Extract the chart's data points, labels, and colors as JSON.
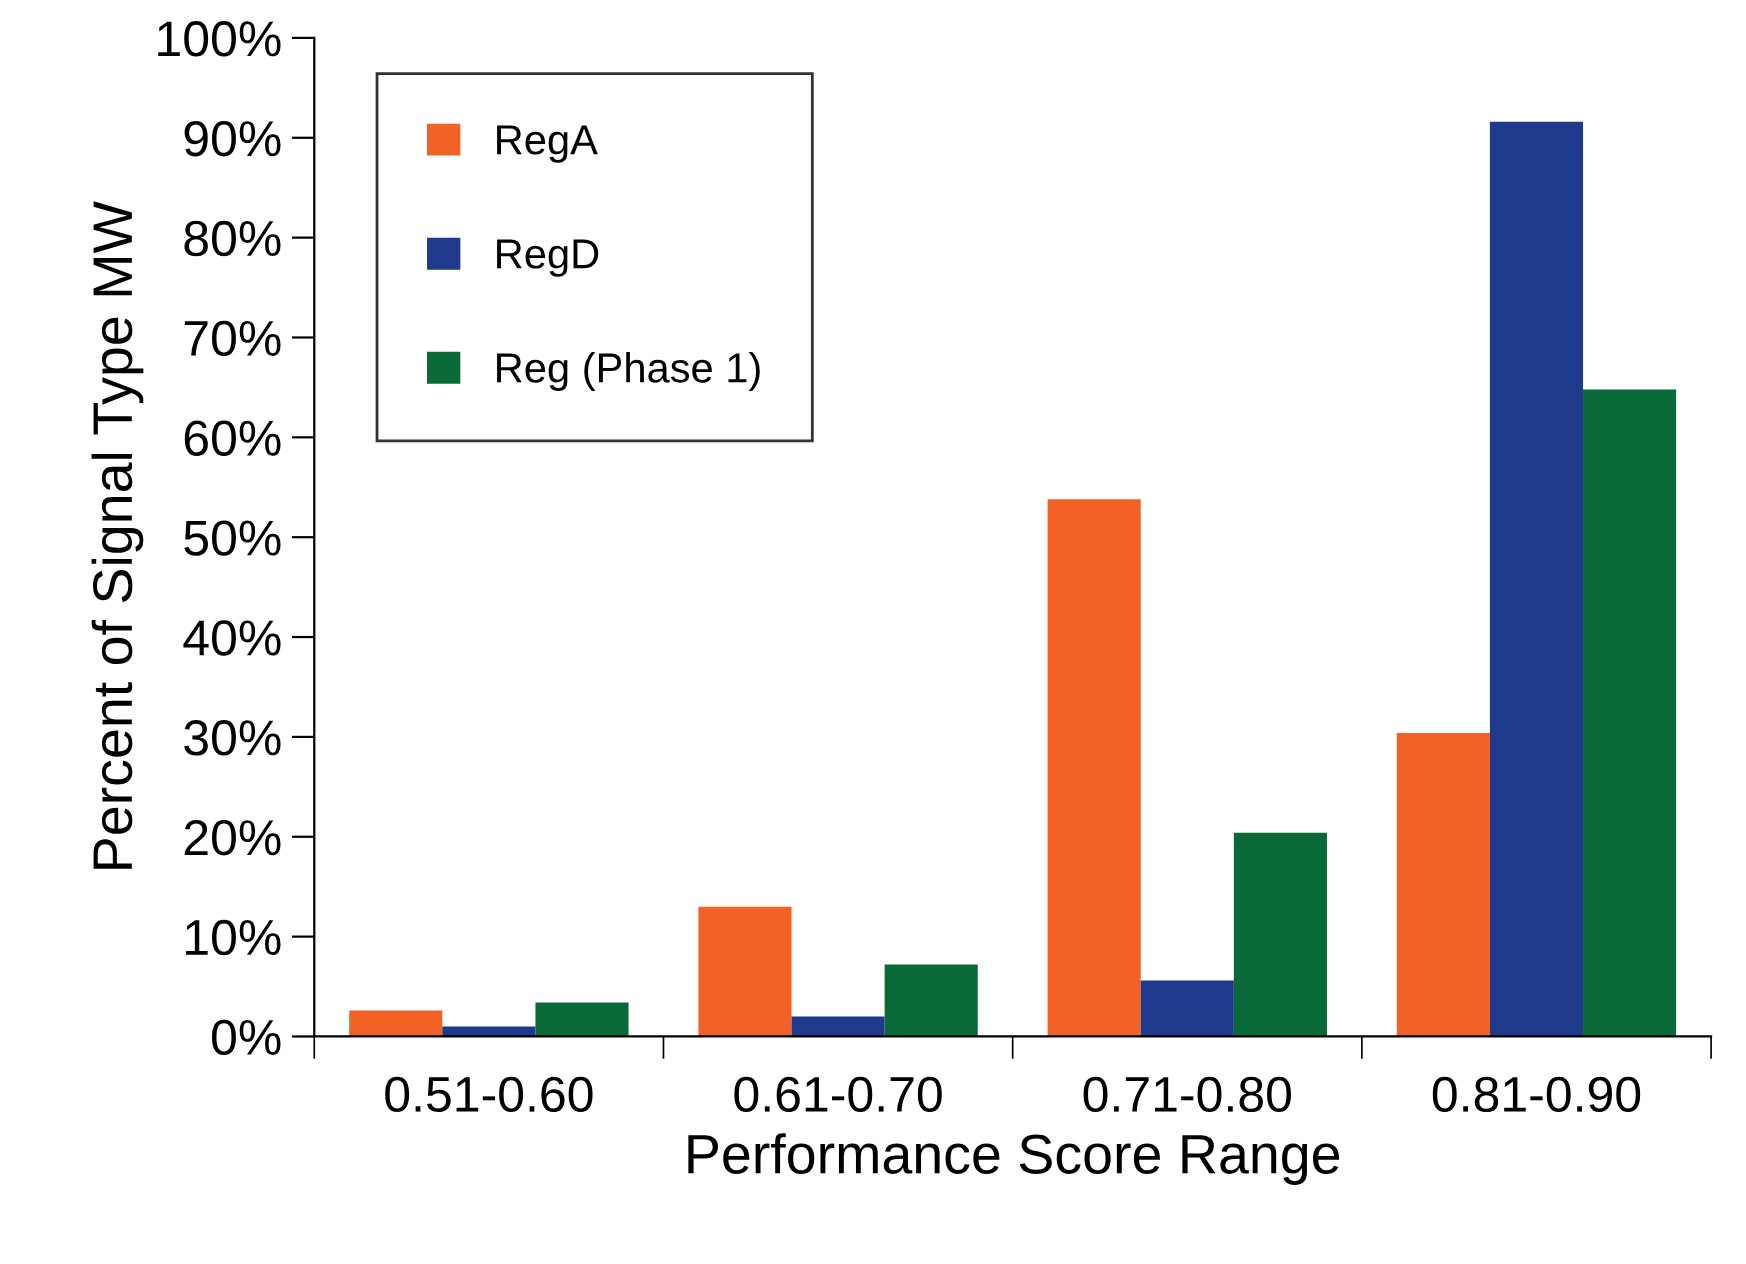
{
  "chart_data": {
    "type": "bar",
    "xlabel": "Performance Score Range",
    "ylabel": "Percent of Signal Type MW",
    "categories": [
      "0.51-0.60",
      "0.61-0.70",
      "0.71-0.80",
      "0.81-0.90"
    ],
    "series": [
      {
        "name": "RegA",
        "color": "#f26125",
        "values": [
          2.6,
          13,
          53.8,
          30.4
        ]
      },
      {
        "name": "RegD",
        "color": "#1f3a8c",
        "values": [
          1,
          2,
          5.6,
          91.6
        ]
      },
      {
        "name": "Reg (Phase 1)",
        "color": "#0a6a37",
        "values": [
          3.4,
          7.2,
          20.4,
          64.8
        ]
      }
    ],
    "ylim": [
      0,
      100
    ],
    "yticks": [
      {
        "value": 0,
        "label": "0%"
      },
      {
        "value": 10,
        "label": "10%"
      },
      {
        "value": 20,
        "label": "20%"
      },
      {
        "value": 30,
        "label": "30%"
      },
      {
        "value": 40,
        "label": "40%"
      },
      {
        "value": 50,
        "label": "50%"
      },
      {
        "value": 60,
        "label": "60%"
      },
      {
        "value": 70,
        "label": "70%"
      },
      {
        "value": 80,
        "label": "80%"
      },
      {
        "value": 90,
        "label": "90%"
      },
      {
        "value": 100,
        "label": "100%"
      }
    ],
    "grid": false,
    "legend": "top left"
  }
}
